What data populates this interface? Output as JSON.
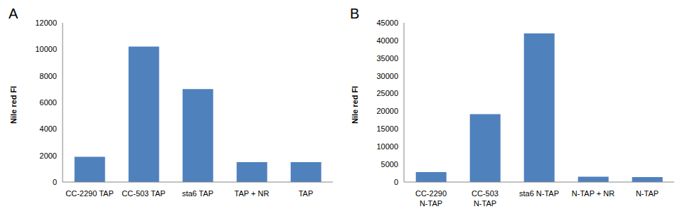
{
  "chart_data": [
    {
      "type": "bar",
      "title": "A",
      "y_label": "Nile red FI",
      "categories": [
        "CC-2290 TAP",
        "CC-503 TAP",
        "sta6 TAP",
        "TAP + NR",
        "TAP"
      ],
      "values": [
        1900,
        10200,
        7000,
        1500,
        1500
      ],
      "color": "#4f81bd",
      "ylim": [
        0,
        12000
      ],
      "yticks": [
        0,
        2000,
        4000,
        6000,
        8000,
        10000,
        12000
      ],
      "grid": false
    },
    {
      "type": "bar",
      "title": "B",
      "y_label": "Nile red FI",
      "categories": [
        "CC-2290 N-TAP",
        "CC-503 N-TAP",
        "sta6 N-TAP",
        "N-TAP + NR",
        "N-TAP"
      ],
      "values": [
        2800,
        19200,
        42000,
        1500,
        1400
      ],
      "color": "#4f81bd",
      "ylim": [
        0,
        45000
      ],
      "yticks": [
        0,
        5000,
        10000,
        15000,
        20000,
        25000,
        30000,
        35000,
        40000,
        45000
      ],
      "grid": false
    }
  ]
}
